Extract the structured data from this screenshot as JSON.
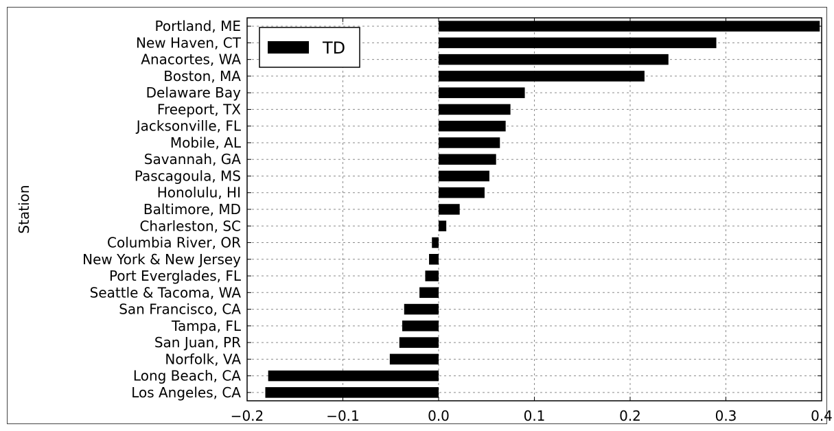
{
  "chart_data": {
    "type": "bar",
    "orientation": "horizontal",
    "ylabel": "Station",
    "xlabel": "",
    "xlim": [
      -0.2,
      0.4
    ],
    "xticks": [
      -0.2,
      -0.1,
      0.0,
      0.1,
      0.2,
      0.3,
      0.4
    ],
    "xtick_labels": [
      "−0.2",
      "−0.1",
      "0.0",
      "0.1",
      "0.2",
      "0.3",
      "0.4"
    ],
    "grid": true,
    "legend_position": "top-left",
    "categories": [
      "Portland, ME",
      "New Haven, CT",
      "Anacortes, WA",
      "Boston, MA",
      "Delaware Bay",
      "Freeport, TX",
      "Jacksonville, FL",
      "Mobile, AL",
      "Savannah, GA",
      "Pascagoula, MS",
      "Honolulu, HI",
      "Baltimore, MD",
      "Charleston, SC",
      "Columbia River, OR",
      "New York & New Jersey",
      "Port Everglades, FL",
      "Seattle & Tacoma, WA",
      "San Francisco, CA",
      "Tampa, FL",
      "San Juan, PR",
      "Norfolk, VA",
      "Long Beach, CA",
      "Los Angeles, CA"
    ],
    "series": [
      {
        "name": "TD",
        "color": "#000000",
        "values": [
          0.398,
          0.29,
          0.24,
          0.215,
          0.09,
          0.075,
          0.07,
          0.064,
          0.06,
          0.053,
          0.048,
          0.022,
          0.008,
          -0.007,
          -0.01,
          -0.014,
          -0.02,
          -0.036,
          -0.038,
          -0.041,
          -0.051,
          -0.178,
          -0.181
        ]
      }
    ]
  }
}
